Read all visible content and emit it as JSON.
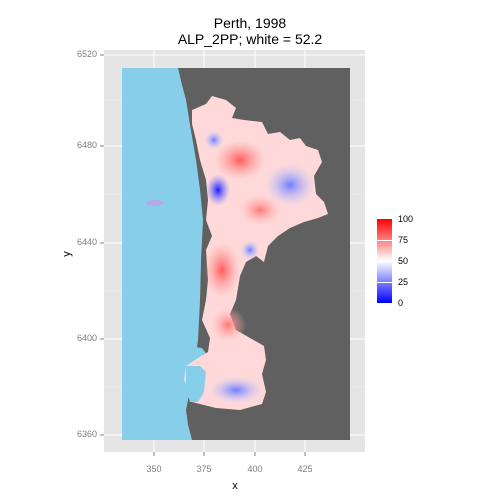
{
  "title": {
    "line1": "Perth, 1998",
    "line2": "ALP_2PP; white = 52.2"
  },
  "axes": {
    "xlabel": "x",
    "ylabel": "y",
    "x_ticks": [
      "350",
      "375",
      "400",
      "425"
    ],
    "y_ticks": [
      "6520",
      "6480",
      "6440",
      "6400",
      "6360"
    ]
  },
  "legend": {
    "ticks": [
      "100",
      "75",
      "50",
      "25",
      "0"
    ],
    "low_color": "#0000ff",
    "mid_color": "#ffffff",
    "high_color": "#ff0000"
  },
  "colors": {
    "panel": "#e5e5e5",
    "grid": "#ffffff",
    "sea": "#87ceeb",
    "land": "#606060"
  }
}
